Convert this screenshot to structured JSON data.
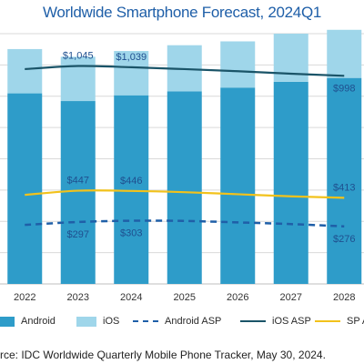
{
  "chart_data": {
    "type": "bar",
    "title": "Worldwide Smartphone Forecast, 2024Q1",
    "categories": [
      "2022",
      "2023",
      "2024",
      "2025",
      "2026",
      "2027",
      "2028"
    ],
    "stacked": true,
    "ylim": [
      0,
      1.3
    ],
    "grid": true,
    "series": [
      {
        "name": "Android",
        "kind": "bar",
        "color": "#2e9cc9",
        "values": [
          0.99,
          0.95,
          0.98,
          1.0,
          1.02,
          1.05,
          1.07
        ]
      },
      {
        "name": "iOS",
        "kind": "bar",
        "color": "#9fd6ea",
        "values": [
          0.23,
          0.23,
          0.23,
          0.24,
          0.24,
          0.25,
          0.25
        ]
      }
    ],
    "line_series": [
      {
        "name": "Android ASP",
        "style": "dashed",
        "color": "#1f5fa8",
        "values": [
          283,
          297,
          303,
          302,
          295,
          287,
          276
        ]
      },
      {
        "name": "iOS ASP",
        "style": "solid",
        "color": "#1a5468",
        "values": [
          1030,
          1045,
          1039,
          1030,
          1020,
          1008,
          998
        ]
      },
      {
        "name": "SP ASP",
        "style": "solid",
        "color": "#f2c21b",
        "values": [
          427,
          447,
          446,
          440,
          430,
          420,
          413
        ]
      }
    ],
    "line_ylim": [
      0,
      1200
    ],
    "data_labels": [
      {
        "series": "iOS ASP",
        "category": "2023",
        "text": "$1,045",
        "position": "above"
      },
      {
        "series": "iOS ASP",
        "category": "2024",
        "text": "$1,039",
        "position": "above"
      },
      {
        "series": "iOS ASP",
        "category": "2028",
        "text": "$998",
        "position": "below"
      },
      {
        "series": "SP ASP",
        "category": "2023",
        "text": "$447",
        "position": "above"
      },
      {
        "series": "SP ASP",
        "category": "2024",
        "text": "$446",
        "position": "above"
      },
      {
        "series": "SP ASP",
        "category": "2028",
        "text": "$413",
        "position": "above"
      },
      {
        "series": "Android ASP",
        "category": "2023",
        "text": "$297",
        "position": "below"
      },
      {
        "series": "Android ASP",
        "category": "2024",
        "text": "$303",
        "position": "below"
      },
      {
        "series": "Android ASP",
        "category": "2028",
        "text": "$276",
        "position": "below"
      }
    ],
    "legend": {
      "position": "bottom",
      "items": [
        {
          "label": "Android",
          "kind": "box",
          "color": "#2e9cc9"
        },
        {
          "label": "iOS",
          "kind": "box",
          "color": "#9fd6ea"
        },
        {
          "label": "Android ASP",
          "kind": "dashed",
          "color": "#1f5fa8"
        },
        {
          "label": "iOS ASP",
          "kind": "solid",
          "color": "#1a5468"
        },
        {
          "label": "SP A",
          "kind": "solid",
          "color": "#f2c21b"
        }
      ]
    },
    "source": "rce: IDC Worldwide Quarterly Mobile Phone Tracker, May 30, 2024."
  }
}
